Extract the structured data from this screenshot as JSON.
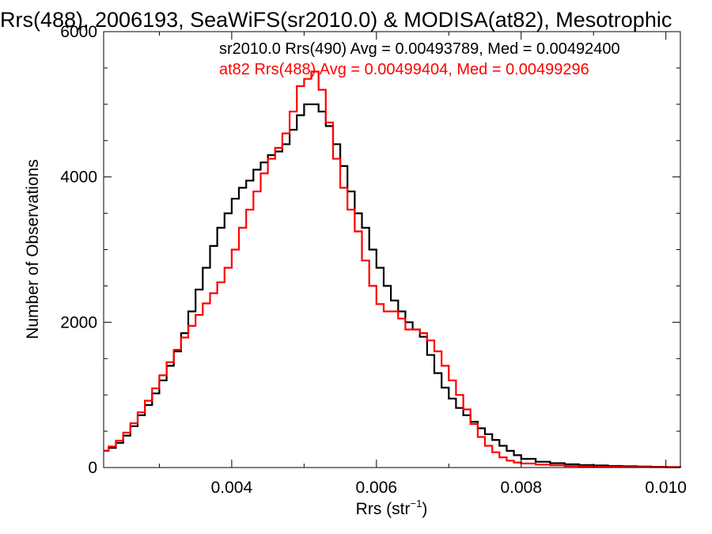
{
  "chart_data": {
    "type": "line",
    "title": "Rrs(488), 2006193, SeaWiFS(sr2010.0) & MODISA(at82), Mesotrophic",
    "xlabel": "Rrs (str",
    "xlabel_sup": "−1",
    "xlabel_close": ")",
    "ylabel": "Number of Observations",
    "xlim": [
      0.00223,
      0.0102
    ],
    "ylim": [
      0,
      6000
    ],
    "xticks": [
      0.004,
      0.006,
      0.008,
      0.01
    ],
    "xtick_labels": [
      "0.004",
      "0.006",
      "0.008",
      "0.010"
    ],
    "yticks": [
      0,
      2000,
      4000,
      6000
    ],
    "ytick_labels": [
      "0",
      "2000",
      "4000",
      "6000"
    ],
    "grid": false,
    "step": true,
    "series": [
      {
        "name": "sr2010.0 Rrs(490) Avg = 0.00493789, Med = 0.00492400",
        "color": "#000000",
        "x": [
          0.00223,
          0.0023,
          0.0024,
          0.0025,
          0.0026,
          0.0027,
          0.0028,
          0.0029,
          0.003,
          0.0031,
          0.0032,
          0.0033,
          0.0034,
          0.0035,
          0.0036,
          0.0037,
          0.0038,
          0.0039,
          0.004,
          0.0041,
          0.0042,
          0.0043,
          0.0044,
          0.0045,
          0.0046,
          0.0047,
          0.0048,
          0.0049,
          0.005,
          0.0051,
          0.0052,
          0.0053,
          0.0054,
          0.0055,
          0.0056,
          0.0057,
          0.0058,
          0.0059,
          0.006,
          0.0061,
          0.0062,
          0.0063,
          0.0064,
          0.0065,
          0.0066,
          0.0067,
          0.0068,
          0.0069,
          0.007,
          0.0071,
          0.0072,
          0.0073,
          0.0074,
          0.0075,
          0.0076,
          0.0077,
          0.0078,
          0.0079,
          0.008,
          0.0082,
          0.0084,
          0.0086,
          0.0088,
          0.009,
          0.0092,
          0.0094,
          0.0096,
          0.0098,
          0.01,
          0.0102
        ],
        "values": [
          230,
          270,
          340,
          440,
          570,
          720,
          860,
          1020,
          1200,
          1400,
          1600,
          1850,
          2150,
          2450,
          2750,
          3050,
          3300,
          3500,
          3700,
          3850,
          3950,
          4100,
          4200,
          4300,
          4350,
          4450,
          4650,
          4850,
          5000,
          5000,
          4900,
          4700,
          4450,
          4150,
          3800,
          3500,
          3300,
          3000,
          2750,
          2500,
          2300,
          2150,
          2000,
          1900,
          1800,
          1550,
          1300,
          1100,
          950,
          820,
          720,
          630,
          540,
          460,
          380,
          300,
          230,
          170,
          120,
          80,
          60,
          45,
          35,
          28,
          22,
          18,
          14,
          10,
          7,
          5
        ]
      },
      {
        "name": "at82 Rrs(488) Avg = 0.00499404, Med = 0.00499296",
        "color": "#ff0000",
        "x": [
          0.00223,
          0.0023,
          0.0024,
          0.0025,
          0.0026,
          0.0027,
          0.0028,
          0.0029,
          0.003,
          0.0031,
          0.0032,
          0.0033,
          0.0034,
          0.0035,
          0.0036,
          0.0037,
          0.0038,
          0.0039,
          0.004,
          0.0041,
          0.0042,
          0.0043,
          0.0044,
          0.0045,
          0.0046,
          0.0047,
          0.0048,
          0.0049,
          0.005,
          0.0051,
          0.0052,
          0.0053,
          0.0054,
          0.0055,
          0.0056,
          0.0057,
          0.0058,
          0.0059,
          0.006,
          0.0061,
          0.0062,
          0.0063,
          0.0064,
          0.0065,
          0.0066,
          0.0067,
          0.0068,
          0.0069,
          0.007,
          0.0071,
          0.0072,
          0.0073,
          0.0074,
          0.0075,
          0.0076,
          0.0077,
          0.0078,
          0.0079,
          0.008,
          0.0082,
          0.0084,
          0.0086,
          0.0088,
          0.009,
          0.0092,
          0.0094,
          0.0096,
          0.0098,
          0.01,
          0.0102
        ],
        "values": [
          230,
          290,
          370,
          480,
          610,
          760,
          920,
          1090,
          1270,
          1450,
          1620,
          1790,
          1950,
          2100,
          2260,
          2400,
          2550,
          2750,
          3000,
          3300,
          3550,
          3800,
          4050,
          4250,
          4400,
          4600,
          4900,
          5250,
          5350,
          5450,
          5200,
          4750,
          4250,
          3850,
          3550,
          3250,
          2850,
          2500,
          2250,
          2150,
          2150,
          2050,
          1900,
          1900,
          1850,
          1750,
          1600,
          1400,
          1200,
          1000,
          800,
          600,
          420,
          300,
          210,
          140,
          95,
          70,
          55,
          40,
          30,
          20,
          15,
          12,
          10,
          8,
          7,
          5,
          4,
          3
        ]
      }
    ]
  }
}
